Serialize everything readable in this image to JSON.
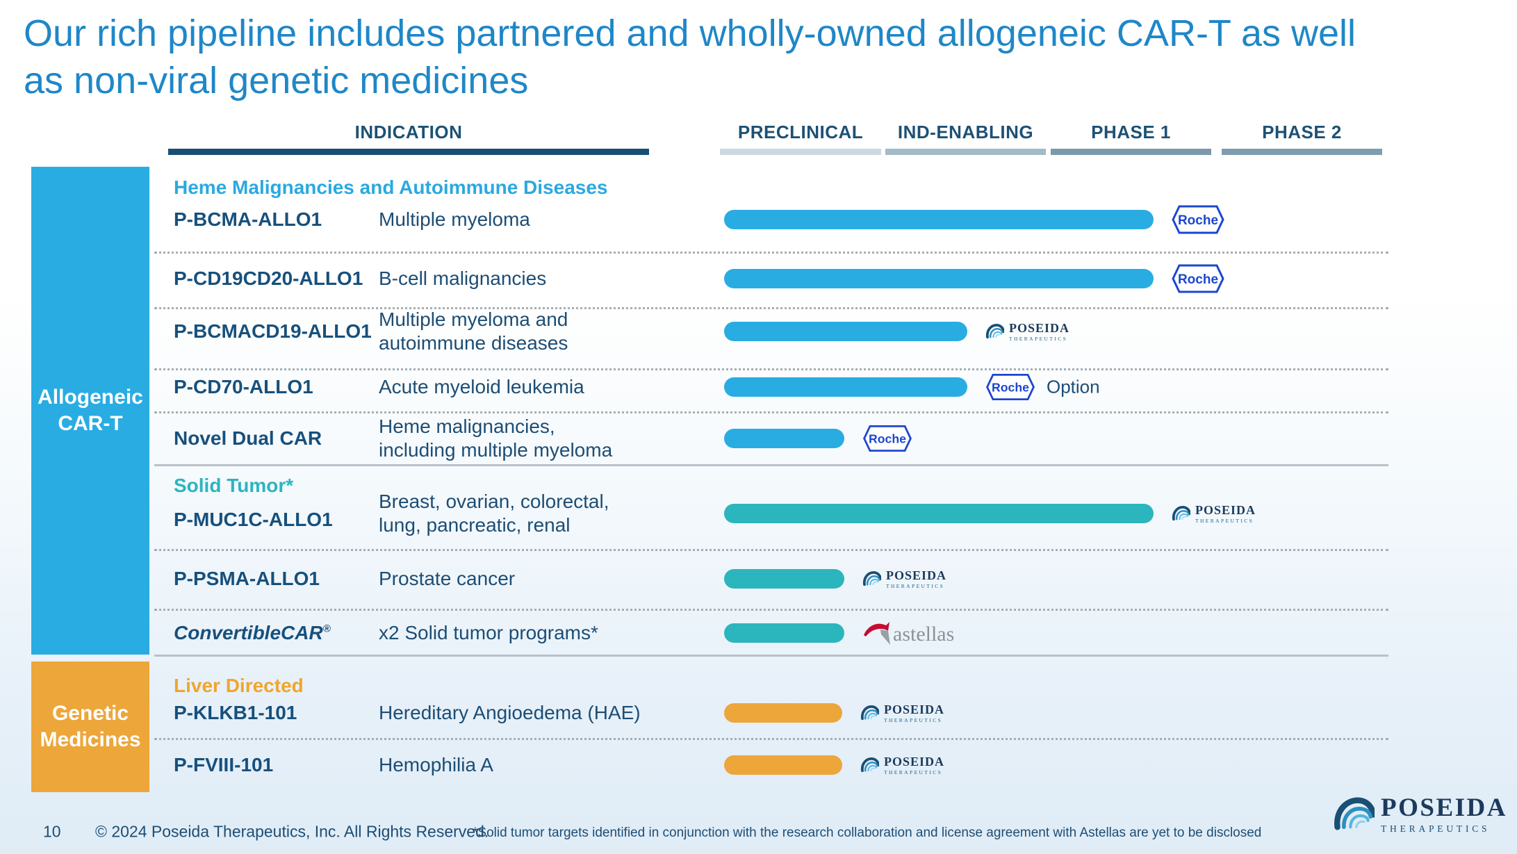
{
  "slide": {
    "title": "Our rich pipeline includes partnered and wholly-owned allogeneic CAR-T as well as non-viral genetic medicines",
    "title_lines": [
      "Our rich pipeline includes partnered and wholly-owned allogeneic CAR-T as well",
      "as non-viral genetic medicines"
    ],
    "footer": {
      "page_number": "10",
      "copyright": "© 2024 Poseida Therapeutics, Inc. All Rights Reserved.",
      "footnote": "*Solid tumor targets identified in conjunction with the research collaboration and license agreement with Astellas are yet to be disclosed"
    }
  },
  "header": {
    "indication_label": "INDICATION",
    "phases": [
      {
        "label": "PRECLINICAL",
        "underline_color": "#ccd9e0"
      },
      {
        "label": "IND-ENABLING",
        "underline_color": "#a3bac8"
      },
      {
        "label": "PHASE 1",
        "underline_color": "#7b99ad"
      },
      {
        "label": "PHASE 2",
        "underline_color": "#7f9db1"
      }
    ]
  },
  "sidebar": {
    "allogeneic_label": "Allogeneic CAR-T",
    "genetic_label": "Genetic Medicines"
  },
  "sections": {
    "heme": "Heme Malignancies and Autoimmune Diseases",
    "solid": "Solid Tumor*",
    "liver": "Liver Directed"
  },
  "logos": {
    "roche": "Roche",
    "option_label": "Option",
    "poseida_name": "POSEIDA",
    "poseida_sub": "THERAPEUTICS",
    "astellas": "astellas"
  },
  "colors": {
    "title_blue": "#1e87c8",
    "navy_text": "#1d4d74",
    "allogeneic_cyan": "#29ace2",
    "solid_tumor_teal": "#2bb5bc",
    "genetic_orange": "#eda63a",
    "roche_blue": "#1d46cf",
    "astellas_red": "#c60c30",
    "astellas_gray": "#8d9296"
  },
  "chart_data": {
    "type": "bar",
    "orientation": "horizontal",
    "title": "Poseida Therapeutics development pipeline",
    "stages": [
      "PRECLINICAL",
      "IND-ENABLING",
      "PHASE 1",
      "PHASE 2"
    ],
    "stage_axis_range": [
      0,
      4
    ],
    "legend_position": "none",
    "grid": false,
    "programs": [
      {
        "program": "P-BCMA-ALLO1",
        "indication": "Multiple myeloma",
        "section": "Heme Malignancies and Autoimmune Diseases",
        "group": "Allogeneic CAR-T",
        "stage": "Phase 1",
        "progress": 2.61,
        "partner": "Roche",
        "color": "#29ace2"
      },
      {
        "program": "P-CD19CD20-ALLO1",
        "indication": "B-cell malignancies",
        "section": "Heme Malignancies and Autoimmune Diseases",
        "group": "Allogeneic CAR-T",
        "stage": "Phase 1",
        "progress": 2.61,
        "partner": "Roche",
        "color": "#29ace2"
      },
      {
        "program": "P-BCMACD19-ALLO1",
        "indication": "Multiple myeloma and autoimmune diseases",
        "section": "Heme Malignancies and Autoimmune Diseases",
        "group": "Allogeneic CAR-T",
        "stage": "IND-Enabling",
        "progress": 1.48,
        "partner": "Poseida",
        "color": "#29ace2"
      },
      {
        "program": "P-CD70-ALLO1",
        "indication": "Acute myeloid leukemia",
        "section": "Heme Malignancies and Autoimmune Diseases",
        "group": "Allogeneic CAR-T",
        "stage": "IND-Enabling",
        "progress": 1.48,
        "partner": "Roche Option",
        "color": "#29ace2"
      },
      {
        "program": "Novel Dual CAR",
        "indication": "Heme malignancies, including multiple myeloma",
        "section": "Heme Malignancies and Autoimmune Diseases",
        "group": "Allogeneic CAR-T",
        "stage": "Preclinical",
        "progress": 0.73,
        "partner": "Roche",
        "color": "#29ace2"
      },
      {
        "program": "P-MUC1C-ALLO1",
        "indication": "Breast, ovarian, colorectal, lung, pancreatic, renal",
        "section": "Solid Tumor*",
        "group": "Allogeneic CAR-T",
        "stage": "Phase 1",
        "progress": 2.61,
        "partner": "Poseida",
        "color": "#2bb5bc"
      },
      {
        "program": "P-PSMA-ALLO1",
        "indication": "Prostate cancer",
        "section": "Solid Tumor*",
        "group": "Allogeneic CAR-T",
        "stage": "Preclinical",
        "progress": 0.73,
        "partner": "Poseida",
        "color": "#2bb5bc"
      },
      {
        "program": "ConvertibleCAR",
        "program_mark": "®",
        "indication": "x2 Solid tumor programs*",
        "section": "Solid Tumor*",
        "group": "Allogeneic CAR-T",
        "stage": "Preclinical",
        "progress": 0.73,
        "partner": "Astellas",
        "color": "#2bb5bc"
      },
      {
        "program": "P-KLKB1-101",
        "indication": "Hereditary Angioedema (HAE)",
        "section": "Liver Directed",
        "group": "Genetic Medicines",
        "stage": "Preclinical",
        "progress": 0.72,
        "partner": "Poseida",
        "color": "#eda63a"
      },
      {
        "program": "P-FVIII-101",
        "indication": "Hemophilia A",
        "section": "Liver Directed",
        "group": "Genetic Medicines",
        "stage": "Preclinical",
        "progress": 0.72,
        "partner": "Poseida",
        "color": "#eda63a"
      }
    ]
  }
}
